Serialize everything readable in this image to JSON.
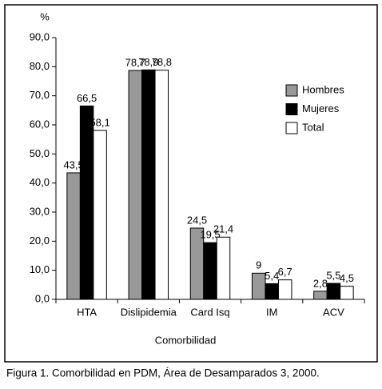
{
  "chart_data": {
    "type": "bar",
    "categories": [
      "HTA",
      "Dislipidemia",
      "Card Isq",
      "IM",
      "ACV"
    ],
    "series": [
      {
        "name": "Hombres",
        "color": "#999999",
        "values": [
          43.5,
          78.7,
          24.5,
          9,
          2.8
        ],
        "value_labels": [
          "43,5",
          "78,7",
          "24,5",
          "9",
          "2,8"
        ]
      },
      {
        "name": "Mujeres",
        "color": "#000000",
        "values": [
          66.5,
          78.9,
          19.5,
          5.4,
          5.5
        ],
        "value_labels": [
          "66,5",
          "78,9",
          "19,5",
          "5,4",
          "5,5"
        ]
      },
      {
        "name": "Total",
        "color": "#ffffff",
        "values": [
          58.1,
          78.8,
          21.4,
          6.7,
          4.5
        ],
        "value_labels": [
          "58,1",
          "78,8",
          "21,4",
          "6,7",
          "4,5"
        ]
      }
    ],
    "y_label": "%",
    "x_label": "Comorbilidad",
    "ylim": [
      0,
      90
    ],
    "yticks": [
      {
        "value": 0,
        "label": "0,0"
      },
      {
        "value": 10,
        "label": "10,0"
      },
      {
        "value": 20,
        "label": "20,0"
      },
      {
        "value": 30,
        "label": "30,0"
      },
      {
        "value": 40,
        "label": "40,0"
      },
      {
        "value": 50,
        "label": "50,0"
      },
      {
        "value": 60,
        "label": "60,0"
      },
      {
        "value": 70,
        "label": "70,0"
      },
      {
        "value": 80,
        "label": "80,0"
      },
      {
        "value": 90,
        "label": "90,0"
      }
    ],
    "legend": "right",
    "caption": "Figura 1. Comorbilidad en PDM, Área de Desamparados 3, 2000."
  }
}
